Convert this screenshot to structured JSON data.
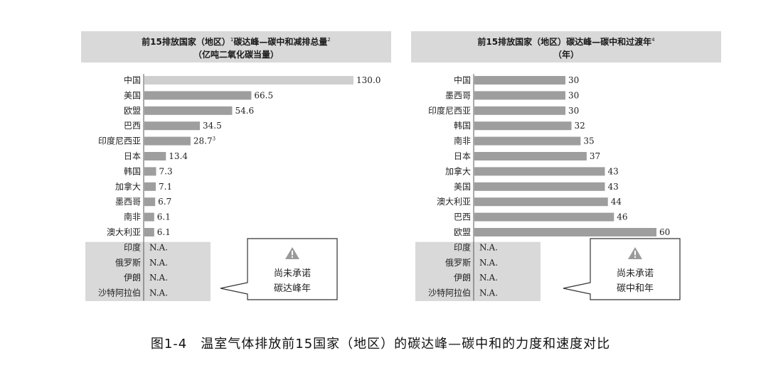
{
  "caption": "图1-4　温室气体排放前15国家（地区）的碳达峰—碳中和的力度和速度对比",
  "colors": {
    "bar_first": "#cfcfcf",
    "bar": "#9e9e9e",
    "na_bg": "#d9d9d9"
  },
  "chart_data": [
    {
      "type": "bar",
      "title_line1": "前15排放国家（地区）碳达峰—碳中和减排总量",
      "title_sup1": "1",
      "title_sup2": "2",
      "title_line2": "（亿吨二氧化碳当量）",
      "categories": [
        "中国",
        "美国",
        "欧盟",
        "巴西",
        "印度尼西亚",
        "日本",
        "韩国",
        "加拿大",
        "墨西哥",
        "南非",
        "澳大利亚"
      ],
      "values": [
        130.0,
        66.5,
        54.6,
        34.5,
        28.7,
        13.4,
        7.3,
        7.1,
        6.7,
        6.1,
        6.1
      ],
      "value_labels": [
        "130.0",
        "66.5",
        "54.6",
        "34.5",
        "28.7",
        "13.4",
        "7.3",
        "7.1",
        "6.7",
        "6.1",
        "6.1"
      ],
      "value_label_sups": [
        "",
        "",
        "",
        "",
        "3",
        "",
        "",
        "",
        "",
        "",
        ""
      ],
      "na_categories": [
        "印度",
        "俄罗斯",
        "伊朗",
        "沙特阿拉伯"
      ],
      "na_label": "N.A.",
      "callout_line1": "尚未承诺",
      "callout_line2": "碳达峰年",
      "callout_icon": "warning-icon"
    },
    {
      "type": "bar",
      "title_line1": "前15排放国家（地区）碳达峰—碳中和过渡年",
      "title_sup1": "4",
      "title_line2": "（年）",
      "categories": [
        "中国",
        "墨西哥",
        "印度尼西亚",
        "韩国",
        "南非",
        "日本",
        "加拿大",
        "美国",
        "澳大利亚",
        "巴西",
        "欧盟"
      ],
      "values": [
        30,
        30,
        30,
        32,
        35,
        37,
        43,
        43,
        44,
        46,
        60
      ],
      "value_labels": [
        "30",
        "30",
        "30",
        "32",
        "35",
        "37",
        "43",
        "43",
        "44",
        "46",
        "60"
      ],
      "value_label_sups": [
        "",
        "",
        "",
        "",
        "",
        "",
        "",
        "",
        "",
        "",
        ""
      ],
      "na_categories": [
        "印度",
        "俄罗斯",
        "伊朗",
        "沙特阿拉伯"
      ],
      "na_label": "N.A.",
      "callout_line1": "尚未承诺",
      "callout_line2": "碳中和年",
      "callout_icon": "warning-icon"
    }
  ]
}
